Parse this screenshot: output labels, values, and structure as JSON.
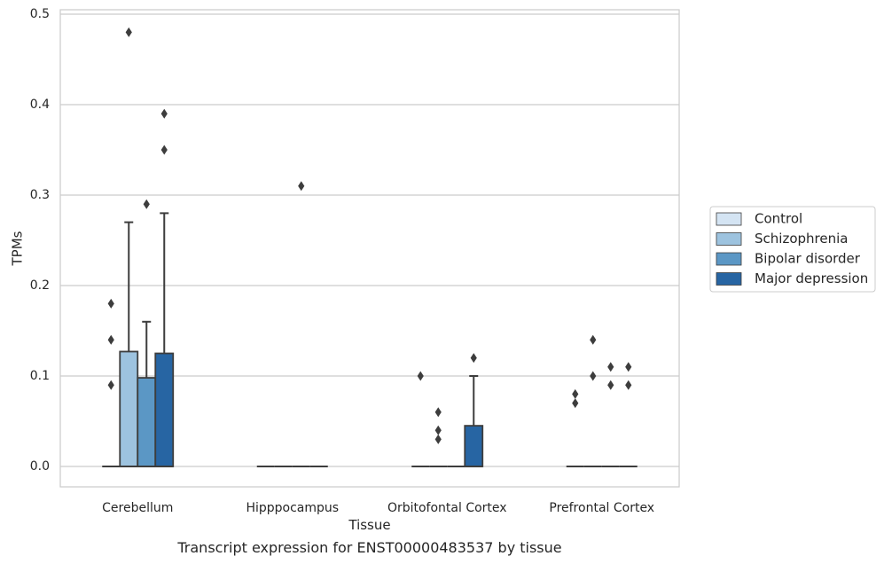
{
  "chart_data": {
    "type": "box",
    "xlabel": "Tissue",
    "ylabel": "TPMs",
    "caption": "Transcript expression for ENST00000483537 by tissue",
    "ylim": [
      -0.023,
      0.505
    ],
    "yticks": [
      0.0,
      0.1,
      0.2,
      0.3,
      0.4,
      0.5
    ],
    "ytick_labels": [
      "0.0",
      "0.1",
      "0.2",
      "0.3",
      "0.4",
      "0.5"
    ],
    "grid": "horizontal",
    "legend_position": "outside-right",
    "categories": [
      "Cerebellum",
      "Hipppocampus",
      "Orbitofontal Cortex",
      "Prefrontal Cortex"
    ],
    "series": [
      {
        "name": "Control",
        "color": "#d4e4f3",
        "boxes": [
          {
            "q1": 0,
            "median": 0,
            "q3": 0,
            "whisker_low": 0,
            "whisker_high": 0,
            "outliers": [
              0.09,
              0.14,
              0.18
            ]
          },
          {
            "q1": 0,
            "median": 0,
            "q3": 0,
            "whisker_low": 0,
            "whisker_high": 0,
            "outliers": []
          },
          {
            "q1": 0,
            "median": 0,
            "q3": 0,
            "whisker_low": 0,
            "whisker_high": 0,
            "outliers": [
              0.1
            ]
          },
          {
            "q1": 0,
            "median": 0,
            "q3": 0,
            "whisker_low": 0,
            "whisker_high": 0,
            "outliers": [
              0.07,
              0.08
            ]
          }
        ]
      },
      {
        "name": "Schizophrenia",
        "color": "#9dc3df",
        "boxes": [
          {
            "q1": 0,
            "median": 0,
            "q3": 0.127,
            "whisker_low": 0,
            "whisker_high": 0.27,
            "outliers": [
              0.48
            ]
          },
          {
            "q1": 0,
            "median": 0,
            "q3": 0,
            "whisker_low": 0,
            "whisker_high": 0,
            "outliers": []
          },
          {
            "q1": 0,
            "median": 0,
            "q3": 0,
            "whisker_low": 0,
            "whisker_high": 0,
            "outliers": [
              0.03,
              0.04,
              0.06
            ]
          },
          {
            "q1": 0,
            "median": 0,
            "q3": 0,
            "whisker_low": 0,
            "whisker_high": 0,
            "outliers": [
              0.1,
              0.14
            ]
          }
        ]
      },
      {
        "name": "Bipolar disorder",
        "color": "#5b97c5",
        "boxes": [
          {
            "q1": 0,
            "median": 0,
            "q3": 0.098,
            "whisker_low": 0,
            "whisker_high": 0.16,
            "outliers": [
              0.29
            ]
          },
          {
            "q1": 0,
            "median": 0,
            "q3": 0,
            "whisker_low": 0,
            "whisker_high": 0,
            "outliers": [
              0.31
            ]
          },
          {
            "q1": 0,
            "median": 0,
            "q3": 0,
            "whisker_low": 0,
            "whisker_high": 0,
            "outliers": []
          },
          {
            "q1": 0,
            "median": 0,
            "q3": 0,
            "whisker_low": 0,
            "whisker_high": 0,
            "outliers": [
              0.09,
              0.11
            ]
          }
        ]
      },
      {
        "name": "Major depression",
        "color": "#2765a3",
        "boxes": [
          {
            "q1": 0,
            "median": 0,
            "q3": 0.125,
            "whisker_low": 0,
            "whisker_high": 0.28,
            "outliers": [
              0.35,
              0.39
            ]
          },
          {
            "q1": 0,
            "median": 0,
            "q3": 0,
            "whisker_low": 0,
            "whisker_high": 0,
            "outliers": []
          },
          {
            "q1": 0,
            "median": 0,
            "q3": 0.045,
            "whisker_low": 0,
            "whisker_high": 0.1,
            "outliers": [
              0.12
            ]
          },
          {
            "q1": 0,
            "median": 0,
            "q3": 0,
            "whisker_low": 0,
            "whisker_high": 0,
            "outliers": [
              0.09,
              0.11
            ]
          }
        ]
      }
    ],
    "colors": {
      "grid": "#cccccc",
      "frame": "#cccccc",
      "box_edge": "#3d3d3d",
      "outlier": "#3d3d3d"
    }
  }
}
